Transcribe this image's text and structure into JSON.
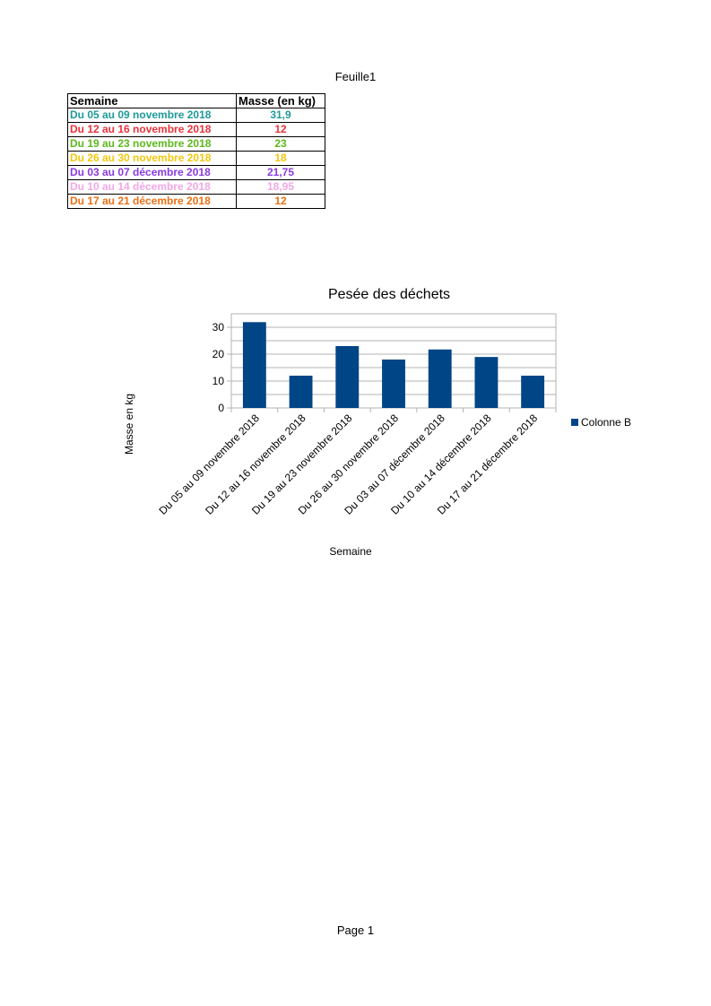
{
  "sheet": {
    "name": "Feuille1",
    "page_label": "Page 1"
  },
  "table": {
    "headers": [
      "Semaine",
      "Masse (en kg)"
    ],
    "rows": [
      {
        "week": "Du 05 au 09 novembre 2018",
        "mass": "31,9",
        "color": "#1e9a9a"
      },
      {
        "week": "Du 12 au 16 novembre 2018",
        "mass": "12",
        "color": "#e8323c"
      },
      {
        "week": "Du 19 au 23 novembre 2018",
        "mass": "23",
        "color": "#5cb81c"
      },
      {
        "week": "Du 26 au 30 novembre 2018",
        "mass": "18",
        "color": "#f2c70d"
      },
      {
        "week": "Du 03 au 07 décembre 2018",
        "mass": "21,75",
        "color": "#8a3be0"
      },
      {
        "week": "Du 10 au 14 décembre 2018",
        "mass": "18,95",
        "color": "#f2a7e6"
      },
      {
        "week": "Du 17 au 21 décembre 2018",
        "mass": "12",
        "color": "#ea6f13"
      }
    ]
  },
  "chart_data": {
    "type": "bar",
    "title": "Pesée des déchets",
    "xlabel": "Semaine",
    "ylabel": "Masse en kg",
    "categories": [
      "Du 05 au 09 novembre 2018",
      "Du 12 au 16 novembre 2018",
      "Du 19 au 23 novembre 2018",
      "Du 26 au 30 novembre 2018",
      "Du 03 au 07 décembre 2018",
      "Du 10 au 14 décembre 2018",
      "Du 17 au 21 décembre 2018"
    ],
    "series": [
      {
        "name": "Colonne B",
        "values": [
          31.9,
          12,
          23,
          18,
          21.75,
          18.95,
          12
        ],
        "color": "#004586"
      }
    ],
    "ylim": [
      0,
      35
    ],
    "yticks": [
      0,
      10,
      20,
      30
    ],
    "grid": true,
    "legend": "right"
  }
}
